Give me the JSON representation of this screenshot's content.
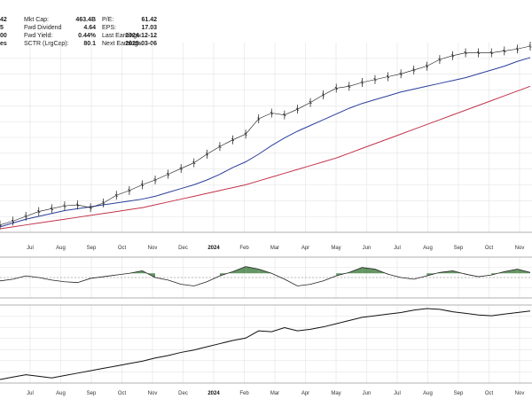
{
  "stats": {
    "left_partial": [
      "42",
      "5",
      "00",
      "es"
    ],
    "col1": [
      {
        "label": "Mkt Cap:",
        "value": "463.4B"
      },
      {
        "label": "Fwd Dividend",
        "value": "4.64"
      },
      {
        "label": "Fwd Yield:",
        "value": "0.44%"
      },
      {
        "label": "SCTR (LrgCap):",
        "value": "80.1"
      }
    ],
    "col2": [
      {
        "label": "P/E:",
        "value": "61.42"
      },
      {
        "label": "EPS:",
        "value": "17.03"
      },
      {
        "label": "Last Earnings:",
        "value": "2024-12-12"
      },
      {
        "label": "Next Earnings:",
        "value": "2025-03-06"
      }
    ]
  },
  "colors": {
    "price": "#111111",
    "ma50": "#2a3f9b",
    "ma200": "#c2334a",
    "osc_fill": "#3d7a3d",
    "grid": "#e3e3e3",
    "axis": "#999999"
  },
  "chart_data": [
    {
      "type": "line",
      "name": "price-panel",
      "x_ticks": [
        "Jul",
        "Aug",
        "Sep",
        "Oct",
        "Nov",
        "Dec",
        "2024",
        "Feb",
        "Mar",
        "Apr",
        "May",
        "Jun",
        "Jul",
        "Aug",
        "Sep",
        "Oct",
        "Nov"
      ],
      "series": [
        {
          "values": [
            10,
            14,
            19,
            24,
            27,
            30,
            31,
            28,
            33,
            41,
            46,
            52,
            57,
            63,
            69,
            75,
            84,
            92,
            99,
            105,
            121,
            127,
            125,
            131,
            138,
            146,
            153,
            155,
            159,
            162,
            165,
            168,
            172,
            176,
            183,
            187,
            190,
            190,
            190,
            192,
            194,
            197
          ]
        },
        {
          "values": [
            8,
            12,
            16,
            19,
            22,
            25,
            27,
            29,
            31,
            33,
            35,
            37,
            40,
            44,
            48,
            52,
            57,
            63,
            70,
            76,
            84,
            93,
            101,
            108,
            114,
            120,
            126,
            132,
            137,
            141,
            145,
            149,
            152,
            155,
            158,
            161,
            164,
            168,
            172,
            176,
            181,
            185
          ]
        },
        {
          "values": [
            6,
            8,
            10,
            12,
            14,
            16,
            18,
            20,
            22,
            24,
            26,
            28,
            31,
            34,
            37,
            40,
            43,
            46,
            49,
            52,
            56,
            60,
            64,
            68,
            72,
            76,
            80,
            85,
            90,
            95,
            100,
            105,
            110,
            115,
            120,
            125,
            130,
            135,
            140,
            145,
            150,
            155
          ]
        }
      ]
    },
    {
      "type": "area",
      "name": "oscillator-panel",
      "series": [
        {
          "values": [
            46,
            48,
            52,
            50,
            47,
            45,
            44,
            49,
            51,
            53,
            55,
            58,
            50,
            47,
            42,
            40,
            45,
            52,
            57,
            63,
            60,
            55,
            48,
            40,
            42,
            46,
            52,
            56,
            62,
            60,
            54,
            50,
            48,
            52,
            56,
            58,
            54,
            51,
            53,
            57,
            60,
            56
          ]
        }
      ]
    },
    {
      "type": "line",
      "name": "relative-strength-panel",
      "x_ticks": [
        "Jul",
        "Aug",
        "Sep",
        "Oct",
        "Nov",
        "Dec",
        "2024",
        "Feb",
        "Mar",
        "Apr",
        "May",
        "Jun",
        "Jul",
        "Aug",
        "Sep",
        "Oct",
        "Nov"
      ],
      "series": [
        {
          "values": [
            6,
            9,
            12,
            10,
            8,
            11,
            14,
            17,
            20,
            23,
            26,
            29,
            33,
            36,
            40,
            43,
            47,
            51,
            55,
            58,
            67,
            66,
            71,
            67,
            69,
            72,
            76,
            80,
            84,
            86,
            88,
            90,
            93,
            95,
            94,
            91,
            89,
            87,
            86,
            88,
            90,
            92
          ]
        }
      ]
    }
  ]
}
